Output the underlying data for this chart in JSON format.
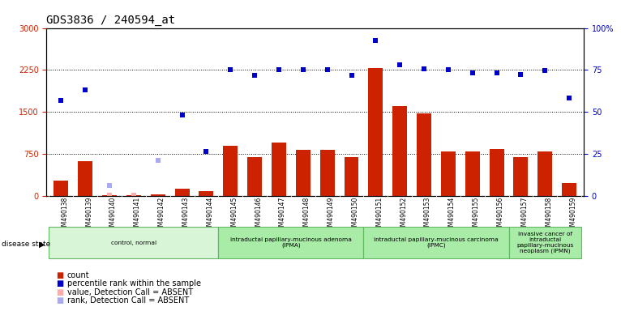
{
  "title": "GDS3836 / 240594_at",
  "samples": [
    "GSM490138",
    "GSM490139",
    "GSM490140",
    "GSM490141",
    "GSM490142",
    "GSM490143",
    "GSM490144",
    "GSM490145",
    "GSM490146",
    "GSM490147",
    "GSM490148",
    "GSM490149",
    "GSM490150",
    "GSM490151",
    "GSM490152",
    "GSM490153",
    "GSM490154",
    "GSM490155",
    "GSM490156",
    "GSM490157",
    "GSM490158",
    "GSM490159"
  ],
  "counts": [
    270,
    620,
    20,
    20,
    30,
    130,
    80,
    900,
    700,
    950,
    820,
    820,
    700,
    2280,
    1600,
    1470,
    790,
    790,
    840,
    700,
    800,
    230
  ],
  "percentile": [
    1700,
    1900,
    null,
    null,
    null,
    1450,
    800,
    2250,
    2150,
    2250,
    2250,
    2250,
    2150,
    2770,
    2340,
    2270,
    2250,
    2200,
    2200,
    2170,
    2240,
    1750
  ],
  "absent_count": [
    null,
    null,
    20,
    20,
    null,
    null,
    null,
    null,
    null,
    null,
    null,
    null,
    null,
    null,
    null,
    null,
    null,
    null,
    null,
    null,
    null,
    null
  ],
  "absent_rank": [
    null,
    null,
    180,
    null,
    630,
    null,
    null,
    null,
    null,
    null,
    null,
    null,
    null,
    null,
    null,
    null,
    null,
    null,
    null,
    null,
    null,
    null
  ],
  "disease_groups": [
    {
      "label": "control, normal",
      "start": 0,
      "end": 7,
      "color": "#d8f5d8"
    },
    {
      "label": "intraductal papillary-mucinous adenoma\n(IPMA)",
      "start": 7,
      "end": 13,
      "color": "#a8eca8"
    },
    {
      "label": "intraductal papillary-mucinous carcinoma\n(IPMC)",
      "start": 13,
      "end": 19,
      "color": "#a8eca8"
    },
    {
      "label": "invasive cancer of\nintraductal\npapillary-mucinous\nneoplasm (IPMN)",
      "start": 19,
      "end": 22,
      "color": "#a8eca8"
    }
  ],
  "ylim_left": [
    0,
    3000
  ],
  "ylim_right": [
    0,
    100
  ],
  "yticks_left": [
    0,
    750,
    1500,
    2250,
    3000
  ],
  "yticks_right": [
    0,
    25,
    50,
    75,
    100
  ],
  "bar_color": "#cc2200",
  "scatter_color": "#0000cc",
  "absent_count_color": "#ffaaaa",
  "absent_rank_color": "#aaaaee",
  "tick_fontsize": 7,
  "legend_fontsize": 7
}
